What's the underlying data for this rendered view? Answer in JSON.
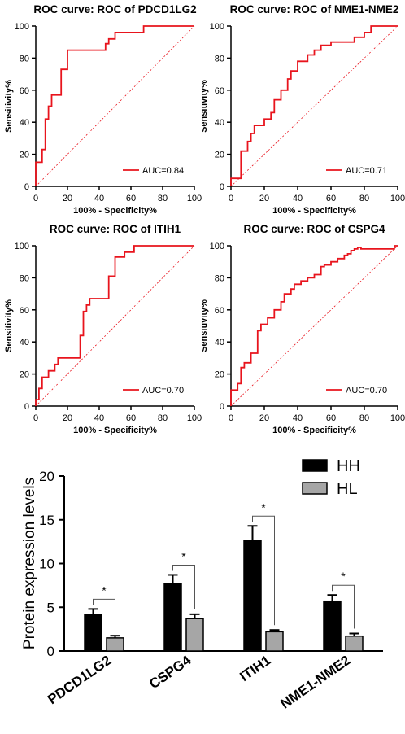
{
  "colors": {
    "roc": "#e8141d",
    "diag": "#e8141d",
    "hh": "#000000",
    "hl": "#a6a6a6",
    "axis": "#000000"
  },
  "chart_data": [
    {
      "type": "line",
      "title": "ROC curve: ROC of PDCD1LG2",
      "xlabel": "100% - Specificity%",
      "ylabel": "Sensitivity%",
      "xlim": [
        0,
        100
      ],
      "ylim": [
        0,
        100
      ],
      "xticks": [
        "0",
        "20",
        "40",
        "60",
        "80",
        "100"
      ],
      "yticks": [
        "0",
        "20",
        "40",
        "60",
        "80",
        "100"
      ],
      "grid": false,
      "legend": "bottom-right",
      "series": [
        {
          "name": "AUC=0.84",
          "x": [
            0,
            0,
            4,
            4,
            6,
            6,
            8,
            8,
            10,
            10,
            16,
            16,
            20,
            20,
            44,
            44,
            46,
            46,
            50,
            50,
            68,
            68,
            100
          ],
          "y": [
            0,
            15,
            15,
            23,
            23,
            42,
            42,
            50,
            50,
            57,
            57,
            73,
            73,
            85,
            85,
            89,
            89,
            92,
            92,
            96,
            96,
            100,
            100
          ]
        }
      ]
    },
    {
      "type": "line",
      "title": "ROC curve: ROC of NME1-NME2",
      "xlabel": "100% - Specificity%",
      "ylabel": "Sensitivity%",
      "xlim": [
        0,
        100
      ],
      "ylim": [
        0,
        100
      ],
      "xticks": [
        "0",
        "20",
        "40",
        "60",
        "80",
        "100"
      ],
      "yticks": [
        "0",
        "20",
        "40",
        "60",
        "80",
        "100"
      ],
      "grid": false,
      "legend": "bottom-right",
      "series": [
        {
          "name": "AUC=0.71",
          "x": [
            0,
            0,
            6,
            6,
            10,
            10,
            12,
            12,
            14,
            14,
            20,
            20,
            24,
            24,
            26,
            26,
            30,
            30,
            34,
            34,
            36,
            36,
            40,
            40,
            46,
            46,
            50,
            50,
            54,
            54,
            60,
            60,
            74,
            74,
            80,
            80,
            84,
            84,
            100
          ],
          "y": [
            0,
            5,
            5,
            22,
            22,
            28,
            28,
            33,
            33,
            38,
            38,
            42,
            42,
            46,
            46,
            54,
            54,
            60,
            60,
            67,
            67,
            72,
            72,
            78,
            78,
            82,
            82,
            85,
            85,
            88,
            88,
            90,
            90,
            93,
            93,
            96,
            96,
            100,
            100
          ]
        }
      ]
    },
    {
      "type": "line",
      "title": "ROC curve: ROC of ITIH1",
      "xlabel": "100% - Specificity%",
      "ylabel": "Sensitivity%",
      "xlim": [
        0,
        100
      ],
      "ylim": [
        0,
        100
      ],
      "xticks": [
        "0",
        "20",
        "40",
        "60",
        "80",
        "100"
      ],
      "yticks": [
        "0",
        "20",
        "40",
        "60",
        "80",
        "100"
      ],
      "grid": false,
      "legend": "bottom-right",
      "series": [
        {
          "name": "AUC=0.70",
          "x": [
            0,
            0,
            2,
            2,
            4,
            4,
            8,
            8,
            12,
            12,
            14,
            14,
            28,
            28,
            30,
            30,
            32,
            32,
            34,
            34,
            46,
            46,
            50,
            50,
            56,
            56,
            62,
            62,
            100
          ],
          "y": [
            0,
            4,
            4,
            11,
            11,
            18,
            18,
            22,
            22,
            26,
            26,
            30,
            30,
            44,
            44,
            59,
            59,
            63,
            63,
            67,
            67,
            81,
            81,
            93,
            93,
            96,
            96,
            100,
            100
          ]
        }
      ]
    },
    {
      "type": "line",
      "title": "ROC curve: ROC of CSPG4",
      "xlabel": "100% - Specificity%",
      "ylabel": "Sensitivity%",
      "xlim": [
        0,
        100
      ],
      "ylim": [
        0,
        100
      ],
      "xticks": [
        "0",
        "20",
        "40",
        "60",
        "80",
        "100"
      ],
      "yticks": [
        "0",
        "20",
        "40",
        "60",
        "80",
        "100"
      ],
      "grid": false,
      "legend": "bottom-right",
      "series": [
        {
          "name": "AUC=0.70",
          "x": [
            0,
            0,
            4,
            4,
            6,
            6,
            8,
            8,
            12,
            12,
            16,
            16,
            18,
            18,
            22,
            22,
            26,
            26,
            30,
            30,
            32,
            32,
            36,
            36,
            38,
            38,
            42,
            42,
            46,
            46,
            50,
            50,
            54,
            54,
            56,
            56,
            60,
            60,
            64,
            64,
            68,
            68,
            70,
            70,
            72,
            72,
            74,
            74,
            76,
            76,
            78,
            78,
            82,
            82,
            98,
            98,
            100
          ],
          "y": [
            0,
            10,
            10,
            14,
            14,
            24,
            24,
            27,
            27,
            33,
            33,
            47,
            47,
            51,
            51,
            55,
            55,
            60,
            60,
            65,
            65,
            70,
            70,
            73,
            73,
            76,
            76,
            78,
            78,
            80,
            80,
            82,
            82,
            87,
            87,
            88,
            88,
            90,
            90,
            92,
            92,
            94,
            94,
            95,
            95,
            97,
            97,
            98,
            98,
            99,
            99,
            98,
            98,
            98,
            98,
            100,
            100
          ]
        }
      ]
    },
    {
      "type": "bar",
      "title": "",
      "xlabel": "",
      "ylabel": "Protein expression levels",
      "ylim": [
        0,
        20
      ],
      "yticks": [
        "0",
        "5",
        "10",
        "15",
        "20"
      ],
      "categories": [
        "PDCD1LG2",
        "CSPG4",
        "ITIH1",
        "NME1-NME2"
      ],
      "series": [
        {
          "name": "HH",
          "values": [
            4.2,
            7.7,
            12.6,
            5.7
          ],
          "errors": [
            0.6,
            1.0,
            1.7,
            0.7
          ]
        },
        {
          "name": "HL",
          "values": [
            1.5,
            3.7,
            2.2,
            1.7
          ],
          "errors": [
            0.25,
            0.5,
            0.2,
            0.3
          ]
        }
      ],
      "significance": [
        "*",
        "*",
        "*",
        "*"
      ],
      "legend": "top-right"
    }
  ]
}
